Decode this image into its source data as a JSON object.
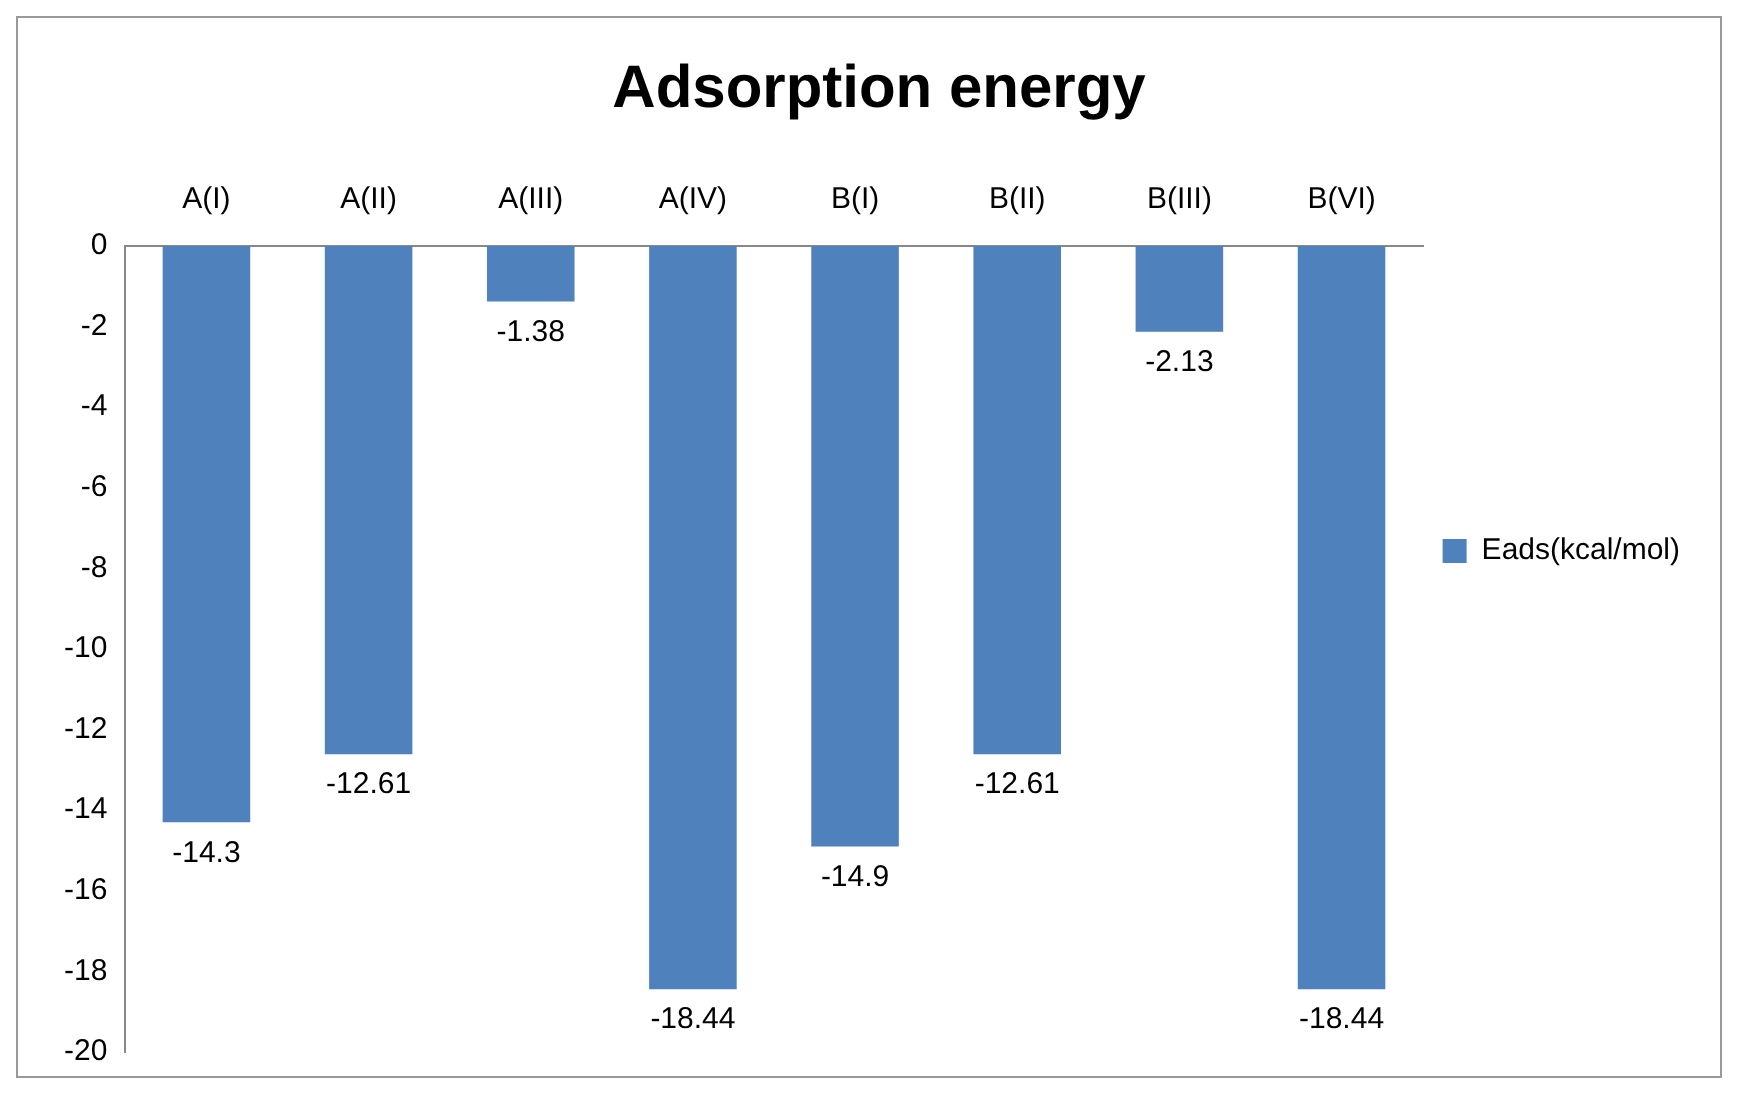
{
  "chart_data": {
    "type": "bar",
    "title": "Adsorption energy",
    "categories": [
      "A(I)",
      "A(II)",
      "A(III)",
      "A(IV)",
      "B(I)",
      "B(II)",
      "B(III)",
      "B(VI)"
    ],
    "series": [
      {
        "name": "Eads(kcal/mol)",
        "color": "#4f81bd",
        "values": [
          -14.3,
          -12.61,
          -1.38,
          -18.44,
          -14.9,
          -12.61,
          -2.13,
          -18.44
        ]
      }
    ],
    "ylim": [
      -20,
      0
    ],
    "yticks": [
      -20,
      -18,
      -16,
      -14,
      -12,
      -10,
      -8,
      -6,
      -4,
      -2,
      0
    ],
    "grid": false,
    "legend": "right",
    "data_labels": true
  }
}
